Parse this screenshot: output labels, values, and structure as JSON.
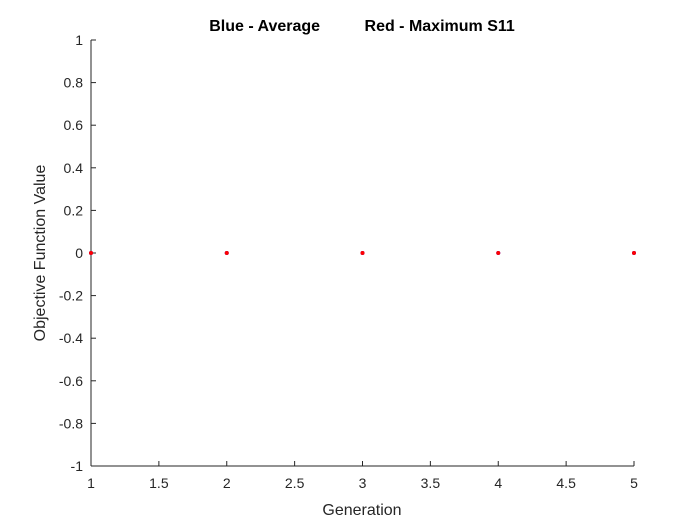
{
  "chart_data": {
    "type": "scatter",
    "title": "Blue - Average          Red - Maximum S11",
    "xlabel": "Generation",
    "ylabel": "Objective Function Value",
    "xlim": [
      1,
      5
    ],
    "ylim": [
      -1,
      1
    ],
    "xticks": [
      "1",
      "1.5",
      "2",
      "2.5",
      "3",
      "3.5",
      "4",
      "4.5",
      "5"
    ],
    "yticks": [
      "-1",
      "-0.8",
      "-0.6",
      "-0.4",
      "-0.2",
      "0",
      "0.2",
      "0.4",
      "0.6",
      "0.8",
      "1"
    ],
    "grid": false,
    "series": [
      {
        "color": "#0000ff",
        "x": [
          1,
          2,
          3,
          4,
          5
        ],
        "y": [
          0,
          0,
          0,
          0,
          0
        ]
      },
      {
        "color": "#ff0000",
        "x": [
          1,
          2,
          3,
          4,
          5
        ],
        "y": [
          0,
          0,
          0,
          0,
          0
        ]
      }
    ]
  }
}
